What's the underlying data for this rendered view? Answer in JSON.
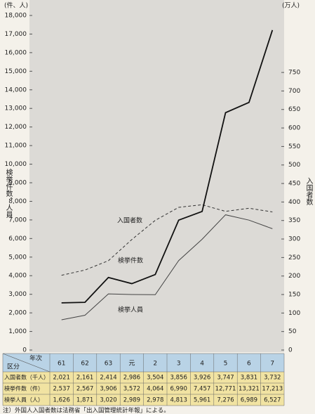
{
  "chart_data": {
    "type": "line",
    "y_unit": "(件、人)",
    "y2_unit": "(万人)",
    "ylabel": "検挙件数、人員",
    "y2label": "入国者数",
    "categories": [
      "61",
      "62",
      "63",
      "元",
      "2",
      "3",
      "4",
      "5",
      "6",
      "7"
    ],
    "series": [
      {
        "name": "入国者数",
        "color": "#333333",
        "dashed": true,
        "axis": "y2",
        "values": [
          202.1,
          216.1,
          241.4,
          298.6,
          350.4,
          385.6,
          392.6,
          374.7,
          383.1,
          373.2
        ]
      },
      {
        "name": "検挙件数",
        "color": "#111111",
        "values": [
          2537,
          2567,
          3906,
          3572,
          4064,
          6990,
          7457,
          12771,
          13321,
          17213
        ]
      },
      {
        "name": "検挙人員",
        "color": "#444444",
        "values": [
          1626,
          1871,
          3020,
          2989,
          2978,
          4813,
          5961,
          7276,
          6989,
          6527
        ]
      }
    ],
    "ylim": [
      0,
      18000
    ],
    "yticks": [
      0,
      {
        "value": 1000,
        "label": "1,000"
      },
      {
        "value": 2000,
        "label": "2,000"
      },
      {
        "value": 3000,
        "label": "3,000"
      },
      {
        "value": 4000,
        "label": "4,000"
      },
      {
        "value": 5000,
        "label": "5,000"
      },
      {
        "value": 6000,
        "label": "6,000"
      },
      {
        "value": 7000,
        "label": "7,000"
      },
      {
        "value": 8000,
        "label": "8,000"
      },
      {
        "value": 9000,
        "label": "9,000"
      },
      {
        "value": 10000,
        "label": "10,000"
      },
      {
        "value": 11000,
        "label": "11,000"
      },
      {
        "value": 12000,
        "label": "12,000"
      },
      {
        "value": 13000,
        "label": "13,000"
      },
      {
        "value": 14000,
        "label": "14,000"
      },
      {
        "value": 15000,
        "label": "15,000"
      },
      {
        "value": 16000,
        "label": "16,000"
      },
      {
        "value": 17000,
        "label": "17,000"
      },
      {
        "value": 18000,
        "label": "18,000"
      }
    ],
    "y2lim": [
      0,
      904
    ],
    "y2ticks": [
      0,
      50,
      100,
      150,
      200,
      250,
      300,
      350,
      400,
      450,
      500,
      550,
      600,
      650,
      700,
      750
    ]
  },
  "table": {
    "corner_top": "年次",
    "corner_bottom": "区分",
    "rows": [
      {
        "label": "入国者数（千人）",
        "cells": [
          "2,021",
          "2,161",
          "2,414",
          "2,986",
          "3,504",
          "3,856",
          "3,926",
          "3,747",
          "3,831",
          "3,732"
        ]
      },
      {
        "label": "検挙件数（件）",
        "cells": [
          "2,537",
          "2,567",
          "3,906",
          "3,572",
          "4,064",
          "6,990",
          "7,457",
          "12,771",
          "13,321",
          "17,213"
        ]
      },
      {
        "label": "検挙人員（人）",
        "cells": [
          "1,626",
          "1,871",
          "3,020",
          "2,989",
          "2,978",
          "4,813",
          "5,961",
          "7,276",
          "6,989",
          "6,527"
        ]
      }
    ]
  },
  "note": "注）外国人入国者数は法務省「出入国管理統計年報」による。"
}
